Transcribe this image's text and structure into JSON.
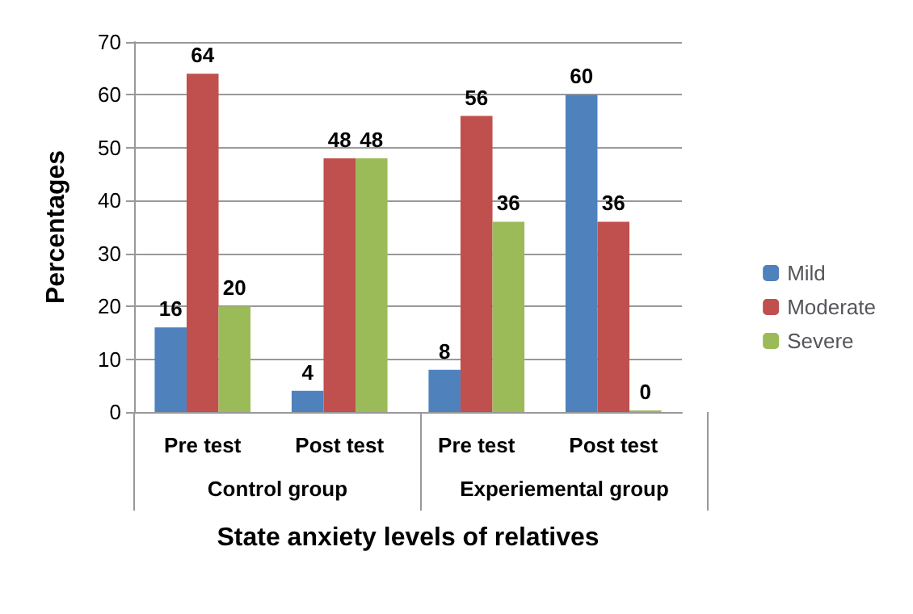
{
  "chart_data": {
    "type": "bar",
    "categories": [
      "Pre test",
      "Post test",
      "Pre test",
      "Post test"
    ],
    "series": [
      {
        "name": "Mild",
        "color": "#4f81bd",
        "values": [
          16,
          4,
          8,
          60
        ]
      },
      {
        "name": "Moderate",
        "color": "#c0504d",
        "values": [
          64,
          48,
          56,
          36
        ]
      },
      {
        "name": "Severe",
        "color": "#9bbb59",
        "values": [
          20,
          48,
          36,
          0
        ]
      }
    ],
    "xlabel": "State anxiety levels of relatives",
    "ylabel": "Percentages",
    "annotations": [
      "Control group",
      "Experiemental group"
    ],
    "ylim": [
      0,
      70
    ],
    "yticks": [
      0,
      10,
      20,
      30,
      40,
      50,
      60,
      70
    ],
    "grid": "y",
    "legend": "right",
    "data_labels": true
  }
}
